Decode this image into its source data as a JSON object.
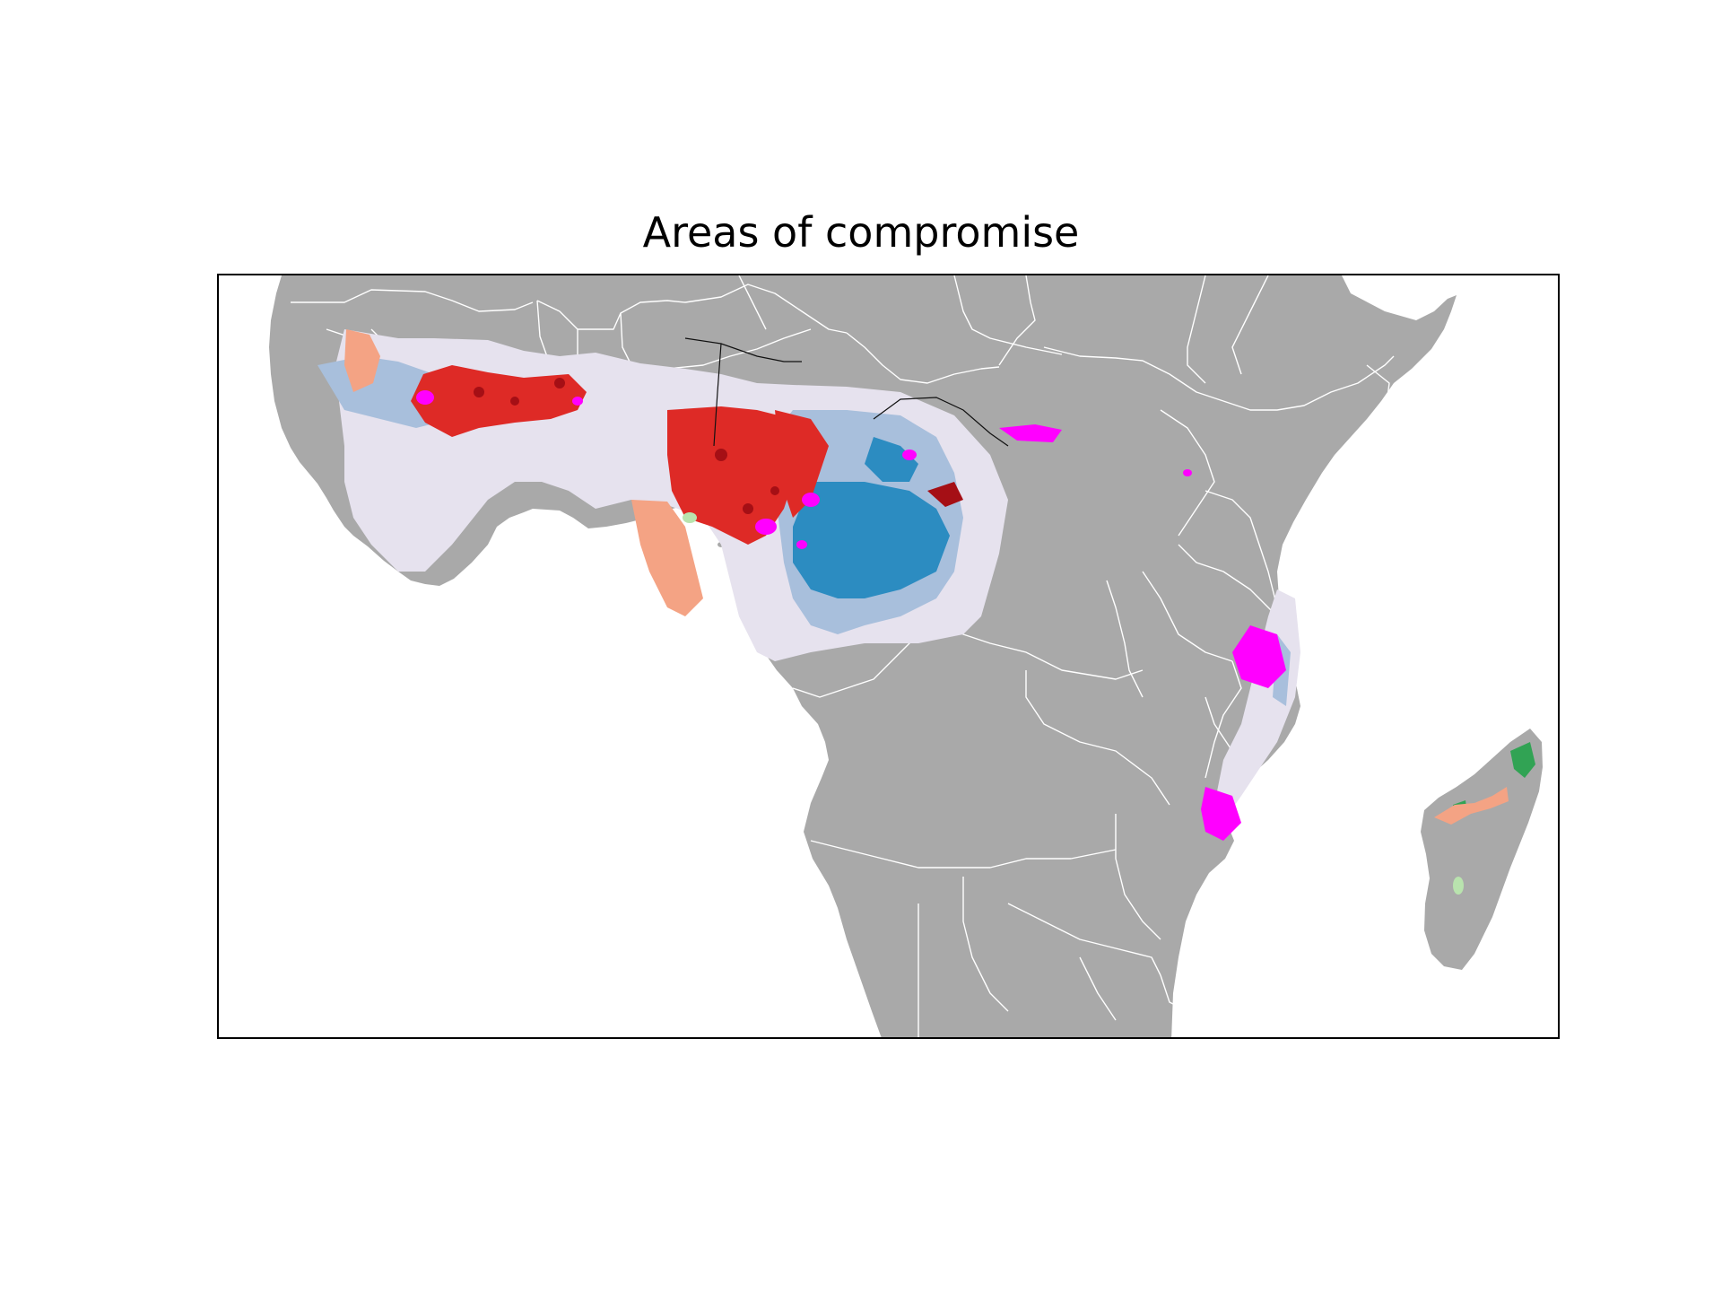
{
  "title": "Areas of compromise",
  "colors": {
    "land": "#a9a9a9",
    "ocean": "#ffffff",
    "borders": "#ffffff",
    "pale_lavender": "#e6e2ee",
    "light_blue": "#a8bfdc",
    "blue": "#2c8cc1",
    "red": "#de2a26",
    "dark_red": "#a50f15",
    "salmon": "#f4a384",
    "magenta": "#ff00ff",
    "green": "#31a354",
    "light_green": "#b9e3ae"
  }
}
